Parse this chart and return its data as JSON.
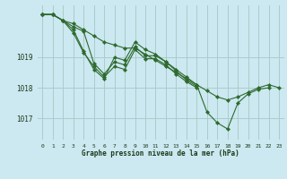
{
  "background_color": "#cce8f0",
  "grid_color": "#aacccc",
  "line_color": "#2d6a2d",
  "marker_color": "#2d6a2d",
  "xlabel": "Graphe pression niveau de la mer (hPa)",
  "xlim": [
    -0.5,
    23.5
  ],
  "ylim": [
    1016.3,
    1020.7
  ],
  "yticks": [
    1017,
    1018,
    1019
  ],
  "xticks": [
    0,
    1,
    2,
    3,
    4,
    5,
    6,
    7,
    8,
    9,
    10,
    11,
    12,
    13,
    14,
    15,
    16,
    17,
    18,
    19,
    20,
    21,
    22,
    23
  ],
  "series": [
    [
      1020.4,
      1020.4,
      1020.2,
      1020.1,
      1019.9,
      1019.7,
      1019.5,
      1019.4,
      1019.3,
      1019.3,
      1019.1,
      1018.9,
      1018.7,
      1018.5,
      1018.3,
      1018.1,
      1017.9,
      1017.7,
      1017.6,
      1017.7,
      1017.85,
      1018.0,
      1018.1,
      1018.0
    ],
    [
      1020.4,
      1020.4,
      1020.2,
      1019.9,
      1019.2,
      1018.6,
      1018.3,
      1019.0,
      1018.9,
      1019.5,
      1019.25,
      1019.1,
      1018.85,
      1018.6,
      1018.35,
      1018.1,
      1017.2,
      1016.85,
      1016.65,
      1017.5,
      1017.8,
      1017.95,
      1018.0,
      null
    ],
    [
      1020.4,
      1020.4,
      1020.2,
      1020.0,
      1019.85,
      1018.8,
      1018.45,
      1018.85,
      1018.75,
      1019.35,
      1019.05,
      1019.05,
      1018.85,
      1018.55,
      1018.25,
      1018.05,
      null,
      null,
      null,
      null,
      null,
      null,
      null,
      null
    ],
    [
      1020.4,
      1020.4,
      1020.2,
      1019.8,
      1019.15,
      1018.7,
      1018.35,
      1018.7,
      1018.6,
      1019.25,
      1018.95,
      1018.95,
      1018.75,
      1018.45,
      1018.2,
      1018.0,
      null,
      null,
      null,
      null,
      null,
      null,
      null,
      null
    ]
  ]
}
